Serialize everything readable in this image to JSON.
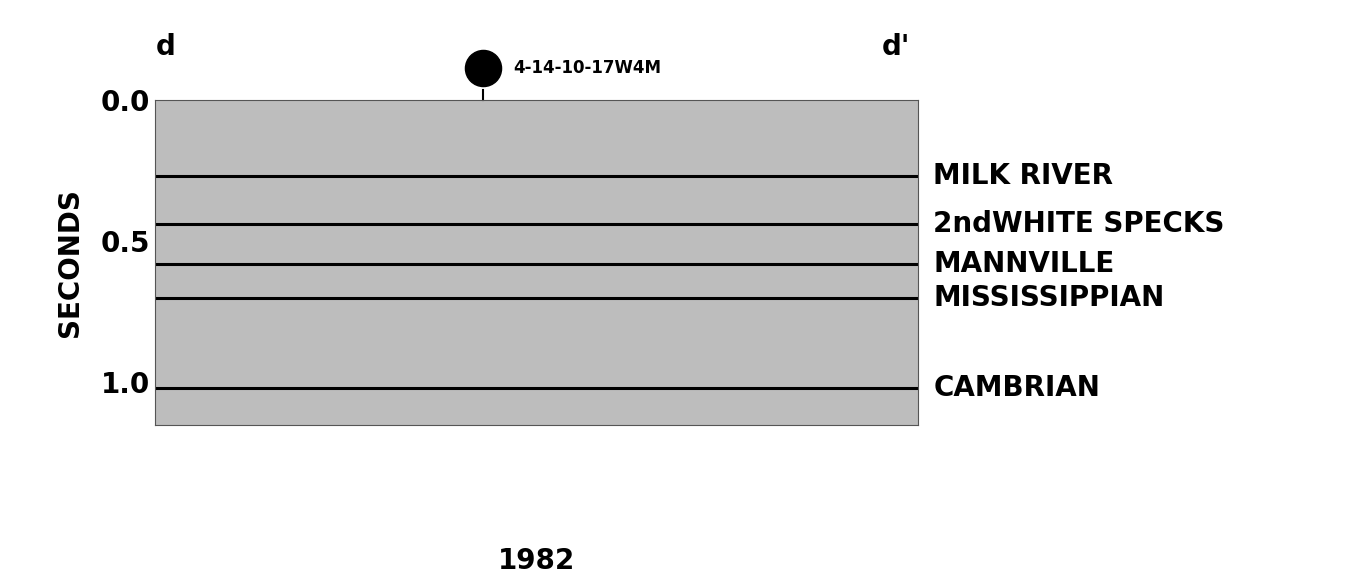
{
  "chart_data": {
    "type": "seismic_section",
    "title_left": "d",
    "title_right": "d'",
    "well": "4-14-10-17W4M",
    "caption": "1982",
    "ylabel": "SECONDS",
    "ylim": [
      1.15,
      0.0
    ],
    "yticks": [
      0.0,
      0.5,
      1.0
    ],
    "tick_labels": "y",
    "color": "#000000",
    "horizons": [
      {
        "name": "MILK RIVER",
        "time": 0.27
      },
      {
        "name": "2ndWHITE SPECKS",
        "time": 0.44
      },
      {
        "name": "MANNVILLE",
        "time": 0.58
      },
      {
        "name": "MISSISSIPPIAN",
        "time": 0.7
      },
      {
        "name": "CAMBRIAN",
        "time": 1.02
      }
    ]
  }
}
